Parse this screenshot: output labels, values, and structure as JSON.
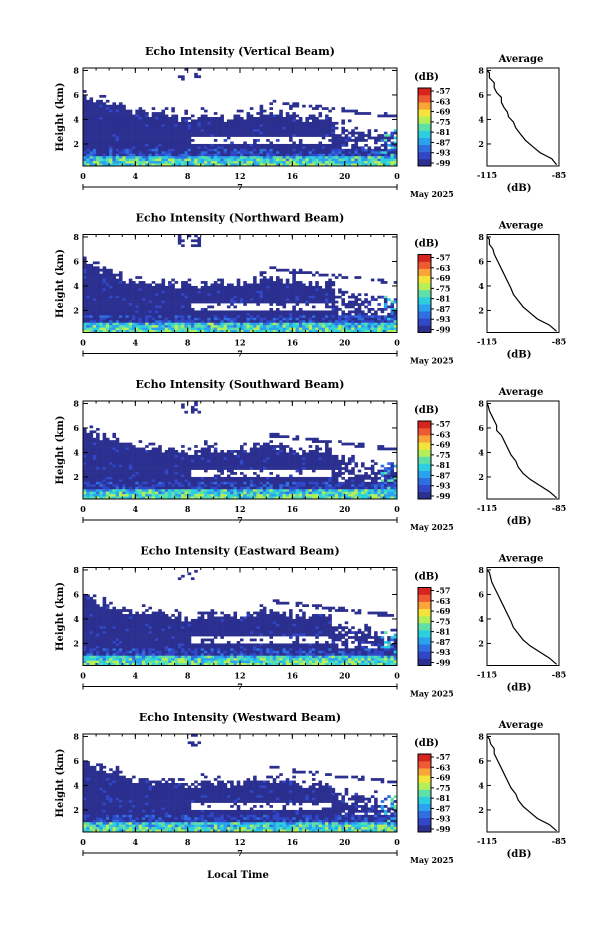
{
  "figure": {
    "xlabel": "Local Time",
    "date_label": "May 2025",
    "day_label": "7",
    "colorbar_unit": "(dB)",
    "colorbar_ticks": [
      "-57",
      "-63",
      "-69",
      "-75",
      "-81",
      "-87",
      "-93",
      "-99"
    ],
    "colormap": [
      "#2b2f8f",
      "#3047c8",
      "#2f6fe0",
      "#2aa2ee",
      "#2ccfe0",
      "#5fe0a8",
      "#b4ef5a",
      "#f3e43c",
      "#f9a53a",
      "#f05a32",
      "#d8241f"
    ],
    "profile_title": "Average",
    "profile_xlabel": "(dB)"
  },
  "chart_data": [
    {
      "type": "heatmap",
      "title": "Echo Intensity (Vertical Beam)",
      "ylabel": "Height (km)",
      "xlim": [
        0,
        24
      ],
      "ylim": [
        0.2,
        8.2
      ],
      "x_ticks": [
        "0",
        "4",
        "8",
        "12",
        "16",
        "20",
        "0"
      ],
      "y_ticks": [
        "2",
        "4",
        "6",
        "8"
      ],
      "color_range_db": [
        -99,
        -57
      ],
      "profile": {
        "x_ticks": [
          "-115",
          "-85"
        ],
        "y_ticks": [
          "2",
          "4",
          "6",
          "8"
        ],
        "xlim": [
          -115,
          -85
        ],
        "ylim": [
          0.2,
          8.2
        ],
        "x": [
          -86,
          -88,
          -93,
          -96,
          -99,
          -101,
          -103,
          -104,
          -106,
          -106.5,
          -108,
          -109,
          -109,
          -111,
          -112,
          -112,
          -114,
          -114,
          -115
        ],
        "y": [
          0.3,
          0.8,
          1.3,
          1.8,
          2.3,
          2.8,
          3.3,
          3.8,
          4.2,
          4.6,
          5.0,
          5.4,
          5.8,
          6.2,
          6.6,
          7.0,
          7.4,
          7.8,
          8.0
        ]
      }
    },
    {
      "type": "heatmap",
      "title": "Echo Intensity (Northward Beam)",
      "ylabel": "Height (km)",
      "xlim": [
        0,
        24
      ],
      "ylim": [
        0.2,
        8.2
      ],
      "x_ticks": [
        "0",
        "4",
        "8",
        "12",
        "16",
        "20",
        "0"
      ],
      "y_ticks": [
        "2",
        "4",
        "6",
        "8"
      ],
      "color_range_db": [
        -99,
        -57
      ],
      "profile": {
        "x_ticks": [
          "-115",
          "-85"
        ],
        "y_ticks": [
          "2",
          "4",
          "6",
          "8"
        ],
        "xlim": [
          -115,
          -85
        ],
        "ylim": [
          0.2,
          8.2
        ],
        "x": [
          -86,
          -89,
          -94,
          -97,
          -100,
          -102,
          -104,
          -105,
          -106,
          -107,
          -108,
          -109,
          -110,
          -111,
          -112,
          -112.5,
          -114,
          -114,
          -115
        ],
        "y": [
          0.3,
          0.8,
          1.3,
          1.8,
          2.3,
          2.8,
          3.3,
          3.8,
          4.2,
          4.6,
          5.0,
          5.4,
          5.8,
          6.2,
          6.6,
          7.0,
          7.4,
          7.8,
          8.0
        ]
      }
    },
    {
      "type": "heatmap",
      "title": "Echo Intensity (Southward Beam)",
      "ylabel": "Height (km)",
      "xlim": [
        0,
        24
      ],
      "ylim": [
        0.2,
        8.2
      ],
      "x_ticks": [
        "0",
        "4",
        "8",
        "12",
        "16",
        "20",
        "0"
      ],
      "y_ticks": [
        "2",
        "4",
        "6",
        "8"
      ],
      "color_range_db": [
        -99,
        -57
      ],
      "profile": {
        "x_ticks": [
          "-115",
          "-85"
        ],
        "y_ticks": [
          "2",
          "4",
          "6",
          "8"
        ],
        "xlim": [
          -115,
          -85
        ],
        "ylim": [
          0.2,
          8.2
        ],
        "x": [
          -86,
          -89,
          -93,
          -97,
          -100,
          -102,
          -103,
          -105,
          -106,
          -107,
          -108,
          -109,
          -111,
          -111,
          -112,
          -113,
          -114,
          -114.5,
          -115
        ],
        "y": [
          0.3,
          0.8,
          1.3,
          1.8,
          2.3,
          2.8,
          3.3,
          3.8,
          4.2,
          4.6,
          5.0,
          5.4,
          5.8,
          6.2,
          6.6,
          7.0,
          7.4,
          7.8,
          8.0
        ]
      }
    },
    {
      "type": "heatmap",
      "title": "Echo Intensity (Eastward Beam)",
      "ylabel": "Height (km)",
      "xlim": [
        0,
        24
      ],
      "ylim": [
        0.2,
        8.2
      ],
      "x_ticks": [
        "0",
        "4",
        "8",
        "12",
        "16",
        "20",
        "0"
      ],
      "y_ticks": [
        "2",
        "4",
        "6",
        "8"
      ],
      "color_range_db": [
        -99,
        -57
      ],
      "profile": {
        "x_ticks": [
          "-115",
          "-85"
        ],
        "y_ticks": [
          "2",
          "4",
          "6",
          "8"
        ],
        "xlim": [
          -115,
          -85
        ],
        "ylim": [
          0.2,
          8.2
        ],
        "x": [
          -86,
          -89,
          -93,
          -97,
          -100,
          -102,
          -104,
          -105,
          -106,
          -107,
          -108,
          -109,
          -110,
          -111,
          -112,
          -113,
          -113.5,
          -114,
          -115
        ],
        "y": [
          0.3,
          0.8,
          1.3,
          1.8,
          2.3,
          2.8,
          3.3,
          3.8,
          4.2,
          4.6,
          5.0,
          5.4,
          5.8,
          6.2,
          6.6,
          7.0,
          7.4,
          7.8,
          8.0
        ]
      }
    },
    {
      "type": "heatmap",
      "title": "Echo Intensity (Westward Beam)",
      "ylabel": "Height (km)",
      "xlim": [
        0,
        24
      ],
      "ylim": [
        0.2,
        8.2
      ],
      "x_ticks": [
        "0",
        "4",
        "8",
        "12",
        "16",
        "20",
        "0"
      ],
      "y_ticks": [
        "2",
        "4",
        "6",
        "8"
      ],
      "color_range_db": [
        -99,
        -57
      ],
      "profile": {
        "x_ticks": [
          "-115",
          "-85"
        ],
        "y_ticks": [
          "2",
          "4",
          "6",
          "8"
        ],
        "xlim": [
          -115,
          -85
        ],
        "ylim": [
          0.2,
          8.2
        ],
        "x": [
          -86,
          -89,
          -94,
          -97,
          -100,
          -102,
          -103,
          -105,
          -106,
          -107,
          -108,
          -109,
          -110,
          -111,
          -112,
          -112,
          -113.5,
          -114,
          -115
        ],
        "y": [
          0.3,
          0.8,
          1.3,
          1.8,
          2.3,
          2.8,
          3.3,
          3.8,
          4.2,
          4.6,
          5.0,
          5.4,
          5.8,
          6.2,
          6.6,
          7.0,
          7.4,
          7.8,
          8.0
        ]
      }
    }
  ]
}
